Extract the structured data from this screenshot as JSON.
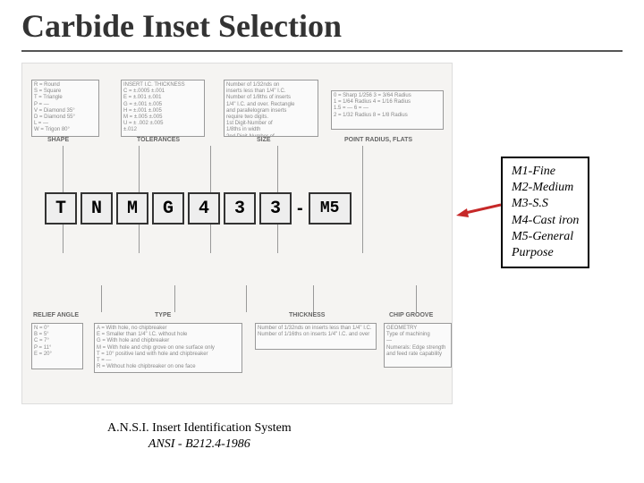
{
  "title": "Carbide Inset Selection",
  "code": {
    "chars": [
      "T",
      "N",
      "M",
      "G",
      "4",
      "3",
      "3"
    ],
    "suffix": "M5"
  },
  "top_boxes": {
    "shape": {
      "label": "SHAPE",
      "lines": [
        "R = Round",
        "S = Square",
        "T = Triangle",
        "P = —",
        "V = Diamond 35°",
        "D = Diamond 55°",
        "L = —",
        "W = Trigon 80°"
      ]
    },
    "tolerances": {
      "label": "TOLERANCES",
      "lines": [
        "INSERT I.C.  THICKNESS",
        "C = ±.0005  ±.001",
        "E = ±.001   ±.001",
        "G = ±.001   ±.005",
        "H = ±.001   ±.005",
        "M = ±.005   ±.005",
        "U = ± .002  ±.005",
        "±.012"
      ]
    },
    "size": {
      "label": "SIZE",
      "lines": [
        "Number of 1/32nds on",
        "inserts less than 1/4\" I.C.",
        "Number of 1/8ths of inserts",
        "1/4\" I.C. and over. Rectangle",
        "and parallelogram inserts",
        "require two digits.",
        "1st Digit-Number of",
        "1/8ths in width",
        "2nd Digit-Number of",
        "1/4ths in length"
      ]
    },
    "radius": {
      "label": "POINT RADIUS, FLATS",
      "lines": [
        "0 = Sharp 1/256  3 = 3/64 Radius",
        "1 = 1/64 Radius  4 = 1/16 Radius",
        "1.5 = —          6 = —",
        "2 = 1/32 Radius  8 = 1/8 Radius"
      ]
    }
  },
  "bottom_boxes": {
    "relief": {
      "label": "RELIEF ANGLE",
      "lines": [
        "N = 0°",
        "B = 5°",
        "C = 7°",
        "P = 11°",
        "E = 20°"
      ]
    },
    "type": {
      "label": "TYPE",
      "lines": [
        "A = With hole, no chipbreaker",
        "E = Smaller than 1/4\" I.C. without hole",
        "G = With hole and chipbreaker",
        "M = With hole and chip grove on one surface only",
        "T = 10° positive land with hole and chipbreaker",
        "T = —",
        "R = Without hole chipbreaker on one face"
      ]
    },
    "thickness": {
      "label": "THICKNESS",
      "lines": [
        "Number of 1/32nds on inserts less than 1/4\" I.C.",
        "Number of 1/16ths on inserts 1/4\" I.C. and over"
      ]
    },
    "chip": {
      "label": "CHIP GROOVE",
      "lines": [
        "GEOMETRY",
        "Type of machining",
        "—",
        "Numerals: Edge strength",
        "and feed rate capability"
      ]
    }
  },
  "annotation": [
    "M1-Fine",
    "M2-Medium",
    "M3-S.S",
    "M4-Cast iron",
    "M5-General",
    "Purpose"
  ],
  "caption": {
    "line1": "A.N.S.I. Insert Identification System",
    "line2": "ANSI - B212.4-1986"
  },
  "colors": {
    "arrow": "#c62828",
    "title": "#333333",
    "box_border": "#999999",
    "diagram_bg": "#f5f4f2"
  }
}
